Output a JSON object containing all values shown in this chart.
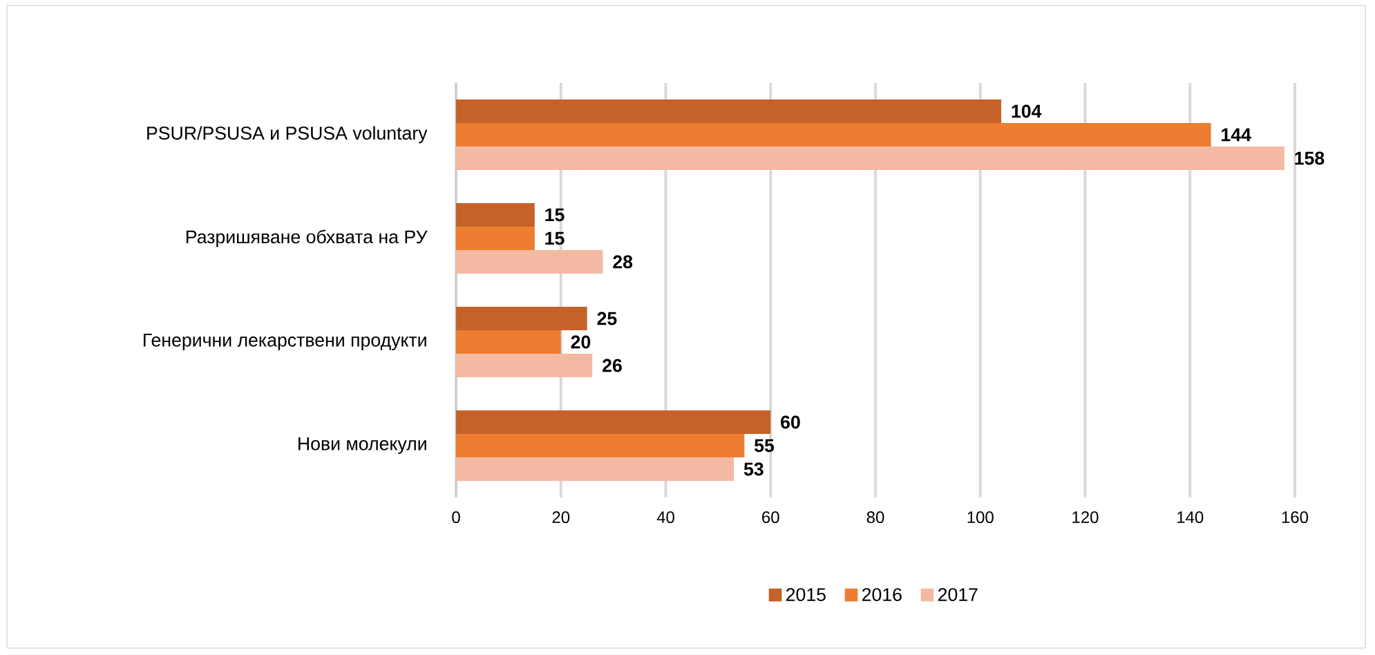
{
  "chart_data": {
    "type": "bar",
    "orientation": "horizontal",
    "categories": [
      "PSUR/PSUSA и PSUSA voluntary",
      "Разришяване обхвата на РУ",
      "Генерични лекарствени продукти",
      "Нови молекули"
    ],
    "series": [
      {
        "name": "2015",
        "color": "#c5622a",
        "values": [
          104,
          15,
          25,
          60
        ]
      },
      {
        "name": "2016",
        "color": "#ed7d31",
        "values": [
          144,
          15,
          20,
          55
        ]
      },
      {
        "name": "2017",
        "color": "#f4b9a2",
        "values": [
          158,
          28,
          26,
          53
        ]
      }
    ],
    "xlim": [
      0,
      160
    ],
    "xticks": [
      0,
      20,
      40,
      60,
      80,
      100,
      120,
      140,
      160
    ],
    "grid": "x",
    "legend": "bottom",
    "data_labels": true
  }
}
